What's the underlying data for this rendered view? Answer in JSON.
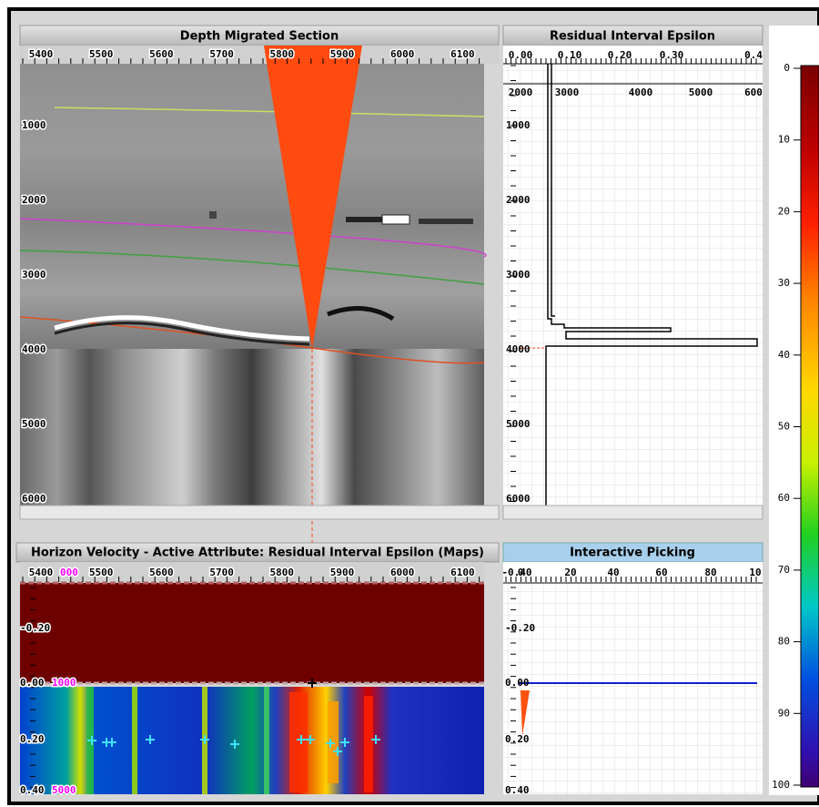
{
  "panels": {
    "depth_section": {
      "title": "Depth Migrated Section",
      "x_ticks": [
        "5400",
        "5500",
        "5600",
        "5700",
        "5800",
        "5900",
        "6000",
        "6100"
      ],
      "y_ticks": [
        "1000",
        "2000",
        "3000",
        "4000",
        "5000",
        "6000"
      ]
    },
    "epsilon": {
      "title": "Residual Interval Epsilon",
      "top_ticks": [
        "0.00",
        "0.10",
        "0.20",
        "0.30",
        "0.4"
      ],
      "velocity_ticks": [
        "2000",
        "3000",
        "4000",
        "5000",
        "600"
      ],
      "y_ticks": [
        "1000",
        "2000",
        "3000",
        "4000",
        "5000",
        "6000"
      ]
    },
    "colorbar": {
      "ticks": [
        "0",
        "10",
        "20",
        "30",
        "40",
        "50",
        "60",
        "70",
        "80",
        "90",
        "100"
      ]
    },
    "horizon": {
      "title": "Horizon Velocity - Active Attribute: Residual Interval Epsilon (Maps)",
      "x_ticks": [
        "5400",
        "5500",
        "5600",
        "5700",
        "5800",
        "5900",
        "6000",
        "6100"
      ],
      "y_ticks": [
        "-0.20",
        "0.00",
        "0.20",
        "0.40"
      ],
      "secondary_labels": [
        "000",
        "1000",
        "5000"
      ]
    },
    "picking": {
      "title": "Interactive Picking",
      "corner_label": "-0.40",
      "top_ticks": [
        "0",
        "20",
        "40",
        "60",
        "80",
        "10"
      ],
      "y_ticks": [
        "-0.20",
        "0.00",
        "0.20",
        "0.40"
      ]
    }
  }
}
